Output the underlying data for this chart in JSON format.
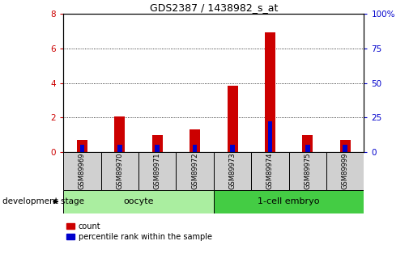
{
  "title": "GDS2387 / 1438982_s_at",
  "samples": [
    "GSM89969",
    "GSM89970",
    "GSM89971",
    "GSM89972",
    "GSM89973",
    "GSM89974",
    "GSM89975",
    "GSM89999"
  ],
  "count_values": [
    0.7,
    2.05,
    1.0,
    1.3,
    3.85,
    6.95,
    1.0,
    0.7
  ],
  "percentile_values": [
    5,
    5,
    5,
    5,
    5,
    22,
    5,
    5
  ],
  "groups": [
    {
      "label": "oocyte",
      "start": 0,
      "end": 4,
      "color": "#AAEEA0"
    },
    {
      "label": "1-cell embryo",
      "start": 4,
      "end": 8,
      "color": "#44CC44"
    }
  ],
  "ylim_left": [
    0,
    8
  ],
  "ylim_right": [
    0,
    100
  ],
  "yticks_left": [
    0,
    2,
    4,
    6,
    8
  ],
  "yticks_right": [
    0,
    25,
    50,
    75,
    100
  ],
  "ytick_labels_right": [
    "0",
    "25",
    "50",
    "75",
    "100%"
  ],
  "bar_color_red": "#CC0000",
  "bar_color_blue": "#0000CC",
  "red_bar_width": 0.28,
  "blue_bar_width": 0.12,
  "grid_color": "black",
  "grid_style": "dotted",
  "tick_label_color_left": "#CC0000",
  "tick_label_color_right": "#0000CC",
  "xlabel_stage": "development stage",
  "legend_count": "count",
  "legend_percentile": "percentile rank within the sample",
  "background_color": "#FFFFFF",
  "plot_bg_color": "#FFFFFF",
  "label_box_color": "#D0D0D0"
}
